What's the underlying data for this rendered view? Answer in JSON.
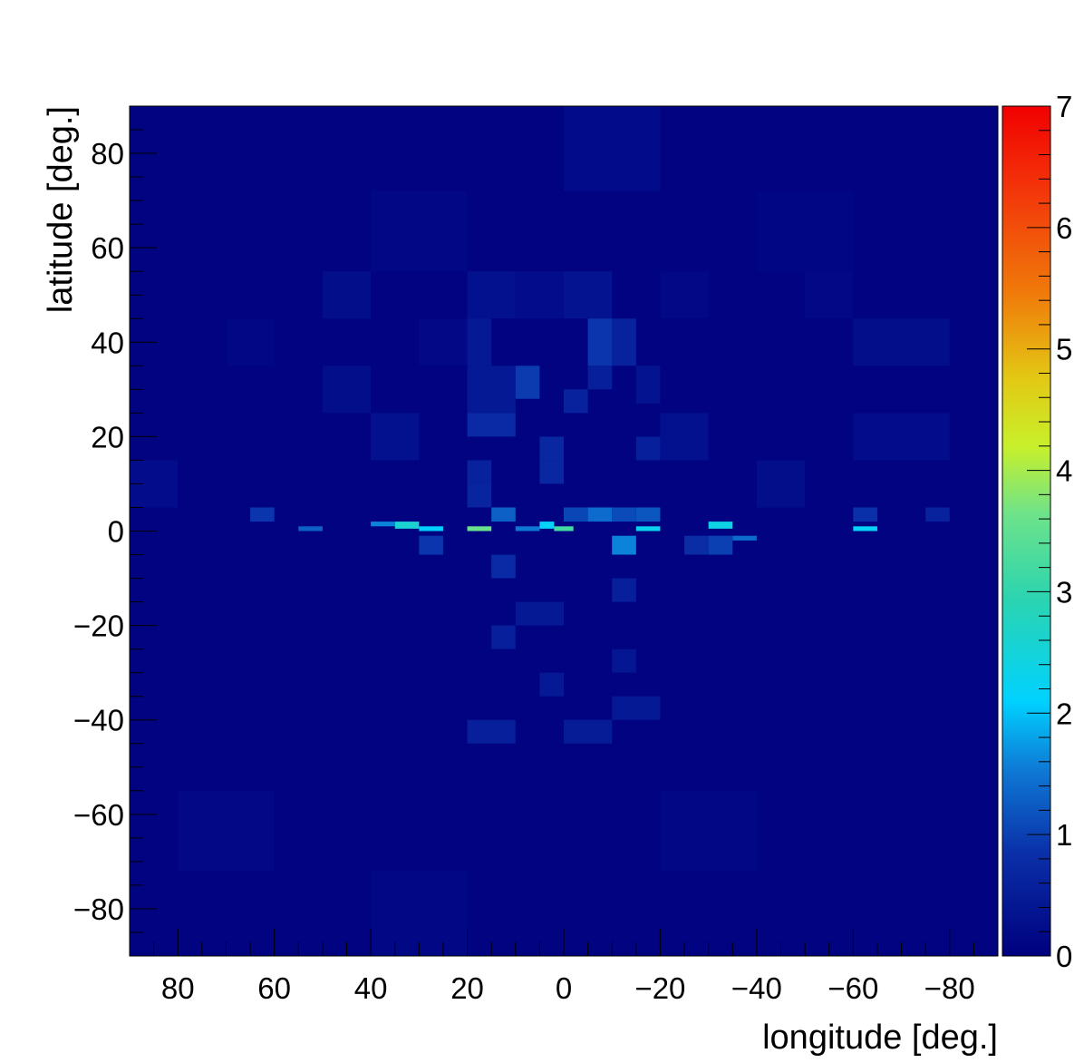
{
  "chart_data": {
    "type": "heatmap",
    "title": "",
    "xlabel": "longitude [deg.]",
    "ylabel": "latitude [deg.]",
    "x_axis_reversed": true,
    "xlim": [
      90,
      -90
    ],
    "ylim": [
      -90,
      90
    ],
    "x_ticks": [
      80,
      60,
      40,
      20,
      0,
      -20,
      -40,
      -60,
      -80
    ],
    "y_ticks": [
      80,
      60,
      40,
      20,
      0,
      -20,
      -40,
      -60,
      -80
    ],
    "x_tick_labels": [
      "80",
      "60",
      "40",
      "20",
      "0",
      "−20",
      "−40",
      "−60",
      "−80"
    ],
    "y_tick_labels": [
      "80",
      "60",
      "40",
      "20",
      "0",
      "−20",
      "−40",
      "−60",
      "−80"
    ],
    "colorbar": {
      "min": 0,
      "max": 7,
      "ticks": [
        0,
        1,
        2,
        3,
        4,
        5,
        6,
        7
      ],
      "tick_labels": [
        "0",
        "1",
        "2",
        "3",
        "4",
        "5",
        "6",
        "7"
      ],
      "colormap": "rainbow (dark blue → blue → cyan → green → yellow → orange → red)"
    },
    "background_value": 0.05,
    "cells": [
      {
        "lon": [
          0,
          -20
        ],
        "lat": [
          72,
          90
        ],
        "value": 0.2
      },
      {
        "lon": [
          40,
          20
        ],
        "lat": [
          55,
          72
        ],
        "value": 0.12
      },
      {
        "lon": [
          -40,
          -60
        ],
        "lat": [
          55,
          72
        ],
        "value": 0.1
      },
      {
        "lon": [
          50,
          40
        ],
        "lat": [
          45,
          55
        ],
        "value": 0.25
      },
      {
        "lon": [
          20,
          10
        ],
        "lat": [
          45,
          55
        ],
        "value": 0.3
      },
      {
        "lon": [
          10,
          0
        ],
        "lat": [
          45,
          55
        ],
        "value": 0.22
      },
      {
        "lon": [
          0,
          -10
        ],
        "lat": [
          45,
          55
        ],
        "value": 0.35
      },
      {
        "lon": [
          -20,
          -30
        ],
        "lat": [
          45,
          55
        ],
        "value": 0.15
      },
      {
        "lon": [
          -50,
          -60
        ],
        "lat": [
          45,
          55
        ],
        "value": 0.15
      },
      {
        "lon": [
          -60,
          -80
        ],
        "lat": [
          35,
          45
        ],
        "value": 0.25
      },
      {
        "lon": [
          70,
          60
        ],
        "lat": [
          35,
          45
        ],
        "value": 0.12
      },
      {
        "lon": [
          30,
          20
        ],
        "lat": [
          35,
          45
        ],
        "value": 0.15
      },
      {
        "lon": [
          20,
          15
        ],
        "lat": [
          35,
          45
        ],
        "value": 0.45
      },
      {
        "lon": [
          -5,
          -10
        ],
        "lat": [
          35,
          45
        ],
        "value": 0.9
      },
      {
        "lon": [
          -10,
          -15
        ],
        "lat": [
          35,
          45
        ],
        "value": 0.6
      },
      {
        "lon": [
          -5,
          -10
        ],
        "lat": [
          30,
          35
        ],
        "value": 0.55
      },
      {
        "lon": [
          50,
          40
        ],
        "lat": [
          25,
          35
        ],
        "value": 0.25
      },
      {
        "lon": [
          20,
          10
        ],
        "lat": [
          25,
          35
        ],
        "value": 0.45
      },
      {
        "lon": [
          10,
          5
        ],
        "lat": [
          28,
          35
        ],
        "value": 0.95
      },
      {
        "lon": [
          0,
          -5
        ],
        "lat": [
          25,
          30
        ],
        "value": 0.6
      },
      {
        "lon": [
          -15,
          -20
        ],
        "lat": [
          27,
          35
        ],
        "value": 0.35
      },
      {
        "lon": [
          40,
          30
        ],
        "lat": [
          15,
          25
        ],
        "value": 0.3
      },
      {
        "lon": [
          20,
          10
        ],
        "lat": [
          20,
          25
        ],
        "value": 0.75
      },
      {
        "lon": [
          -20,
          -30
        ],
        "lat": [
          15,
          25
        ],
        "value": 0.3
      },
      {
        "lon": [
          -60,
          -80
        ],
        "lat": [
          15,
          25
        ],
        "value": 0.22
      },
      {
        "lon": [
          5,
          0
        ],
        "lat": [
          15,
          20
        ],
        "value": 0.7
      },
      {
        "lon": [
          -15,
          -20
        ],
        "lat": [
          15,
          20
        ],
        "value": 0.55
      },
      {
        "lon": [
          20,
          15
        ],
        "lat": [
          10,
          15
        ],
        "value": 0.6
      },
      {
        "lon": [
          5,
          0
        ],
        "lat": [
          10,
          15
        ],
        "value": 0.7
      },
      {
        "lon": [
          90,
          80
        ],
        "lat": [
          5,
          15
        ],
        "value": 0.22
      },
      {
        "lon": [
          -40,
          -50
        ],
        "lat": [
          5,
          15
        ],
        "value": 0.25
      },
      {
        "lon": [
          20,
          15
        ],
        "lat": [
          5,
          10
        ],
        "value": 0.65
      },
      {
        "lon": [
          65,
          60
        ],
        "lat": [
          2,
          5
        ],
        "value": 0.9
      },
      {
        "lon": [
          15,
          10
        ],
        "lat": [
          2,
          5
        ],
        "value": 1.3
      },
      {
        "lon": [
          0,
          -5
        ],
        "lat": [
          2,
          5
        ],
        "value": 1.05
      },
      {
        "lon": [
          -5,
          -10
        ],
        "lat": [
          2,
          5
        ],
        "value": 1.4
      },
      {
        "lon": [
          -10,
          -15
        ],
        "lat": [
          2,
          5
        ],
        "value": 1.1
      },
      {
        "lon": [
          -15,
          -20
        ],
        "lat": [
          2,
          5
        ],
        "value": 1.2
      },
      {
        "lon": [
          -60,
          -65
        ],
        "lat": [
          2,
          5
        ],
        "value": 0.85
      },
      {
        "lon": [
          -75,
          -80
        ],
        "lat": [
          2,
          5
        ],
        "value": 0.6
      },
      {
        "lon": [
          35,
          30
        ],
        "lat": [
          0.5,
          2
        ],
        "value": 2.6
      },
      {
        "lon": [
          30,
          25
        ],
        "lat": [
          0,
          1
        ],
        "value": 2.1
      },
      {
        "lon": [
          20,
          15
        ],
        "lat": [
          0,
          1
        ],
        "value": 3.6
      },
      {
        "lon": [
          10,
          5
        ],
        "lat": [
          0,
          1
        ],
        "value": 1.5
      },
      {
        "lon": [
          5,
          2
        ],
        "lat": [
          0.5,
          2
        ],
        "value": 2.2
      },
      {
        "lon": [
          2,
          -2
        ],
        "lat": [
          0,
          1
        ],
        "value": 3.2
      },
      {
        "lon": [
          -15,
          -20
        ],
        "lat": [
          0,
          1
        ],
        "value": 2.3
      },
      {
        "lon": [
          -30,
          -35
        ],
        "lat": [
          0.5,
          2
        ],
        "value": 2.4
      },
      {
        "lon": [
          -60,
          -65
        ],
        "lat": [
          0,
          1
        ],
        "value": 2.2
      },
      {
        "lon": [
          40,
          35
        ],
        "lat": [
          1,
          2
        ],
        "value": 1.6
      },
      {
        "lon": [
          55,
          50
        ],
        "lat": [
          0,
          1
        ],
        "value": 1.3
      },
      {
        "lon": [
          -35,
          -40
        ],
        "lat": [
          -2,
          -1
        ],
        "value": 1.4
      },
      {
        "lon": [
          30,
          25
        ],
        "lat": [
          -5,
          -1
        ],
        "value": 0.9
      },
      {
        "lon": [
          -10,
          -15
        ],
        "lat": [
          -5,
          -1
        ],
        "value": 1.6
      },
      {
        "lon": [
          -25,
          -30
        ],
        "lat": [
          -5,
          -1
        ],
        "value": 0.8
      },
      {
        "lon": [
          -30,
          -35
        ],
        "lat": [
          -5,
          -1
        ],
        "value": 1.0
      },
      {
        "lon": [
          15,
          10
        ],
        "lat": [
          -10,
          -5
        ],
        "value": 0.75
      },
      {
        "lon": [
          -10,
          -15
        ],
        "lat": [
          -15,
          -10
        ],
        "value": 0.55
      },
      {
        "lon": [
          10,
          0
        ],
        "lat": [
          -20,
          -15
        ],
        "value": 0.45
      },
      {
        "lon": [
          15,
          10
        ],
        "lat": [
          -25,
          -20
        ],
        "value": 0.55
      },
      {
        "lon": [
          -10,
          -15
        ],
        "lat": [
          -30,
          -25
        ],
        "value": 0.4
      },
      {
        "lon": [
          5,
          0
        ],
        "lat": [
          -35,
          -30
        ],
        "value": 0.45
      },
      {
        "lon": [
          -10,
          -20
        ],
        "lat": [
          -40,
          -35
        ],
        "value": 0.45
      },
      {
        "lon": [
          20,
          10
        ],
        "lat": [
          -45,
          -40
        ],
        "value": 0.55
      },
      {
        "lon": [
          0,
          -10
        ],
        "lat": [
          -45,
          -40
        ],
        "value": 0.5
      },
      {
        "lon": [
          40,
          20
        ],
        "lat": [
          -90,
          -72
        ],
        "value": 0.12
      },
      {
        "lon": [
          80,
          60
        ],
        "lat": [
          -72,
          -55
        ],
        "value": 0.14
      },
      {
        "lon": [
          -20,
          -40
        ],
        "lat": [
          -72,
          -55
        ],
        "value": 0.12
      }
    ]
  }
}
